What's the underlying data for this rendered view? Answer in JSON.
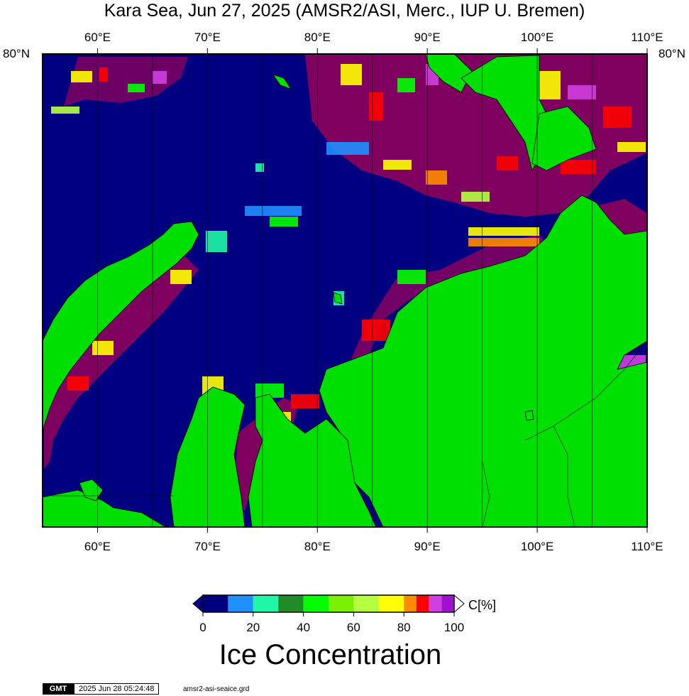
{
  "title": "Kara Sea, Jun 27, 2025 (AMSR2/ASI, Merc., IUP U. Bremen)",
  "map": {
    "lon_range": [
      55,
      110
    ],
    "lat_max_label": "80°N",
    "top_lon_ticks": [
      "60°E",
      "70°E",
      "80°E",
      "90°E",
      "100°E",
      "110°E"
    ],
    "bottom_lon_ticks": [
      "60°E",
      "70°E",
      "80°E",
      "90°E",
      "100°E",
      "110°E"
    ],
    "lat_left_label": "80°N",
    "lat_right_label": "80°N",
    "colors": {
      "open_water": "#000080",
      "land": "#00e000",
      "full_ice": "#800060"
    }
  },
  "colorbar": {
    "unit_label": "C[%]",
    "title": "Ice Concentration",
    "tick_labels": [
      "0",
      "20",
      "40",
      "60",
      "80",
      "100"
    ],
    "range": [
      0,
      100
    ],
    "steps": [
      {
        "from": 0,
        "to": 10,
        "color": "#000080"
      },
      {
        "from": 10,
        "to": 20,
        "color": "#1e90ff"
      },
      {
        "from": 20,
        "to": 30,
        "color": "#20f8a8"
      },
      {
        "from": 30,
        "to": 40,
        "color": "#208c28"
      },
      {
        "from": 40,
        "to": 50,
        "color": "#00ff00"
      },
      {
        "from": 50,
        "to": 60,
        "color": "#78f000"
      },
      {
        "from": 60,
        "to": 70,
        "color": "#b4ff40"
      },
      {
        "from": 70,
        "to": 80,
        "color": "#ffff00"
      },
      {
        "from": 80,
        "to": 85,
        "color": "#ff8c00"
      },
      {
        "from": 85,
        "to": 90,
        "color": "#ff0000"
      },
      {
        "from": 90,
        "to": 95,
        "color": "#d040e0"
      },
      {
        "from": 95,
        "to": 100,
        "color": "#a010d0"
      }
    ]
  },
  "footer": {
    "logo": "GMT",
    "timestamp": "2025 Jun 28 05:24:48",
    "filename": "amsr2-asi-seaice.grd"
  }
}
